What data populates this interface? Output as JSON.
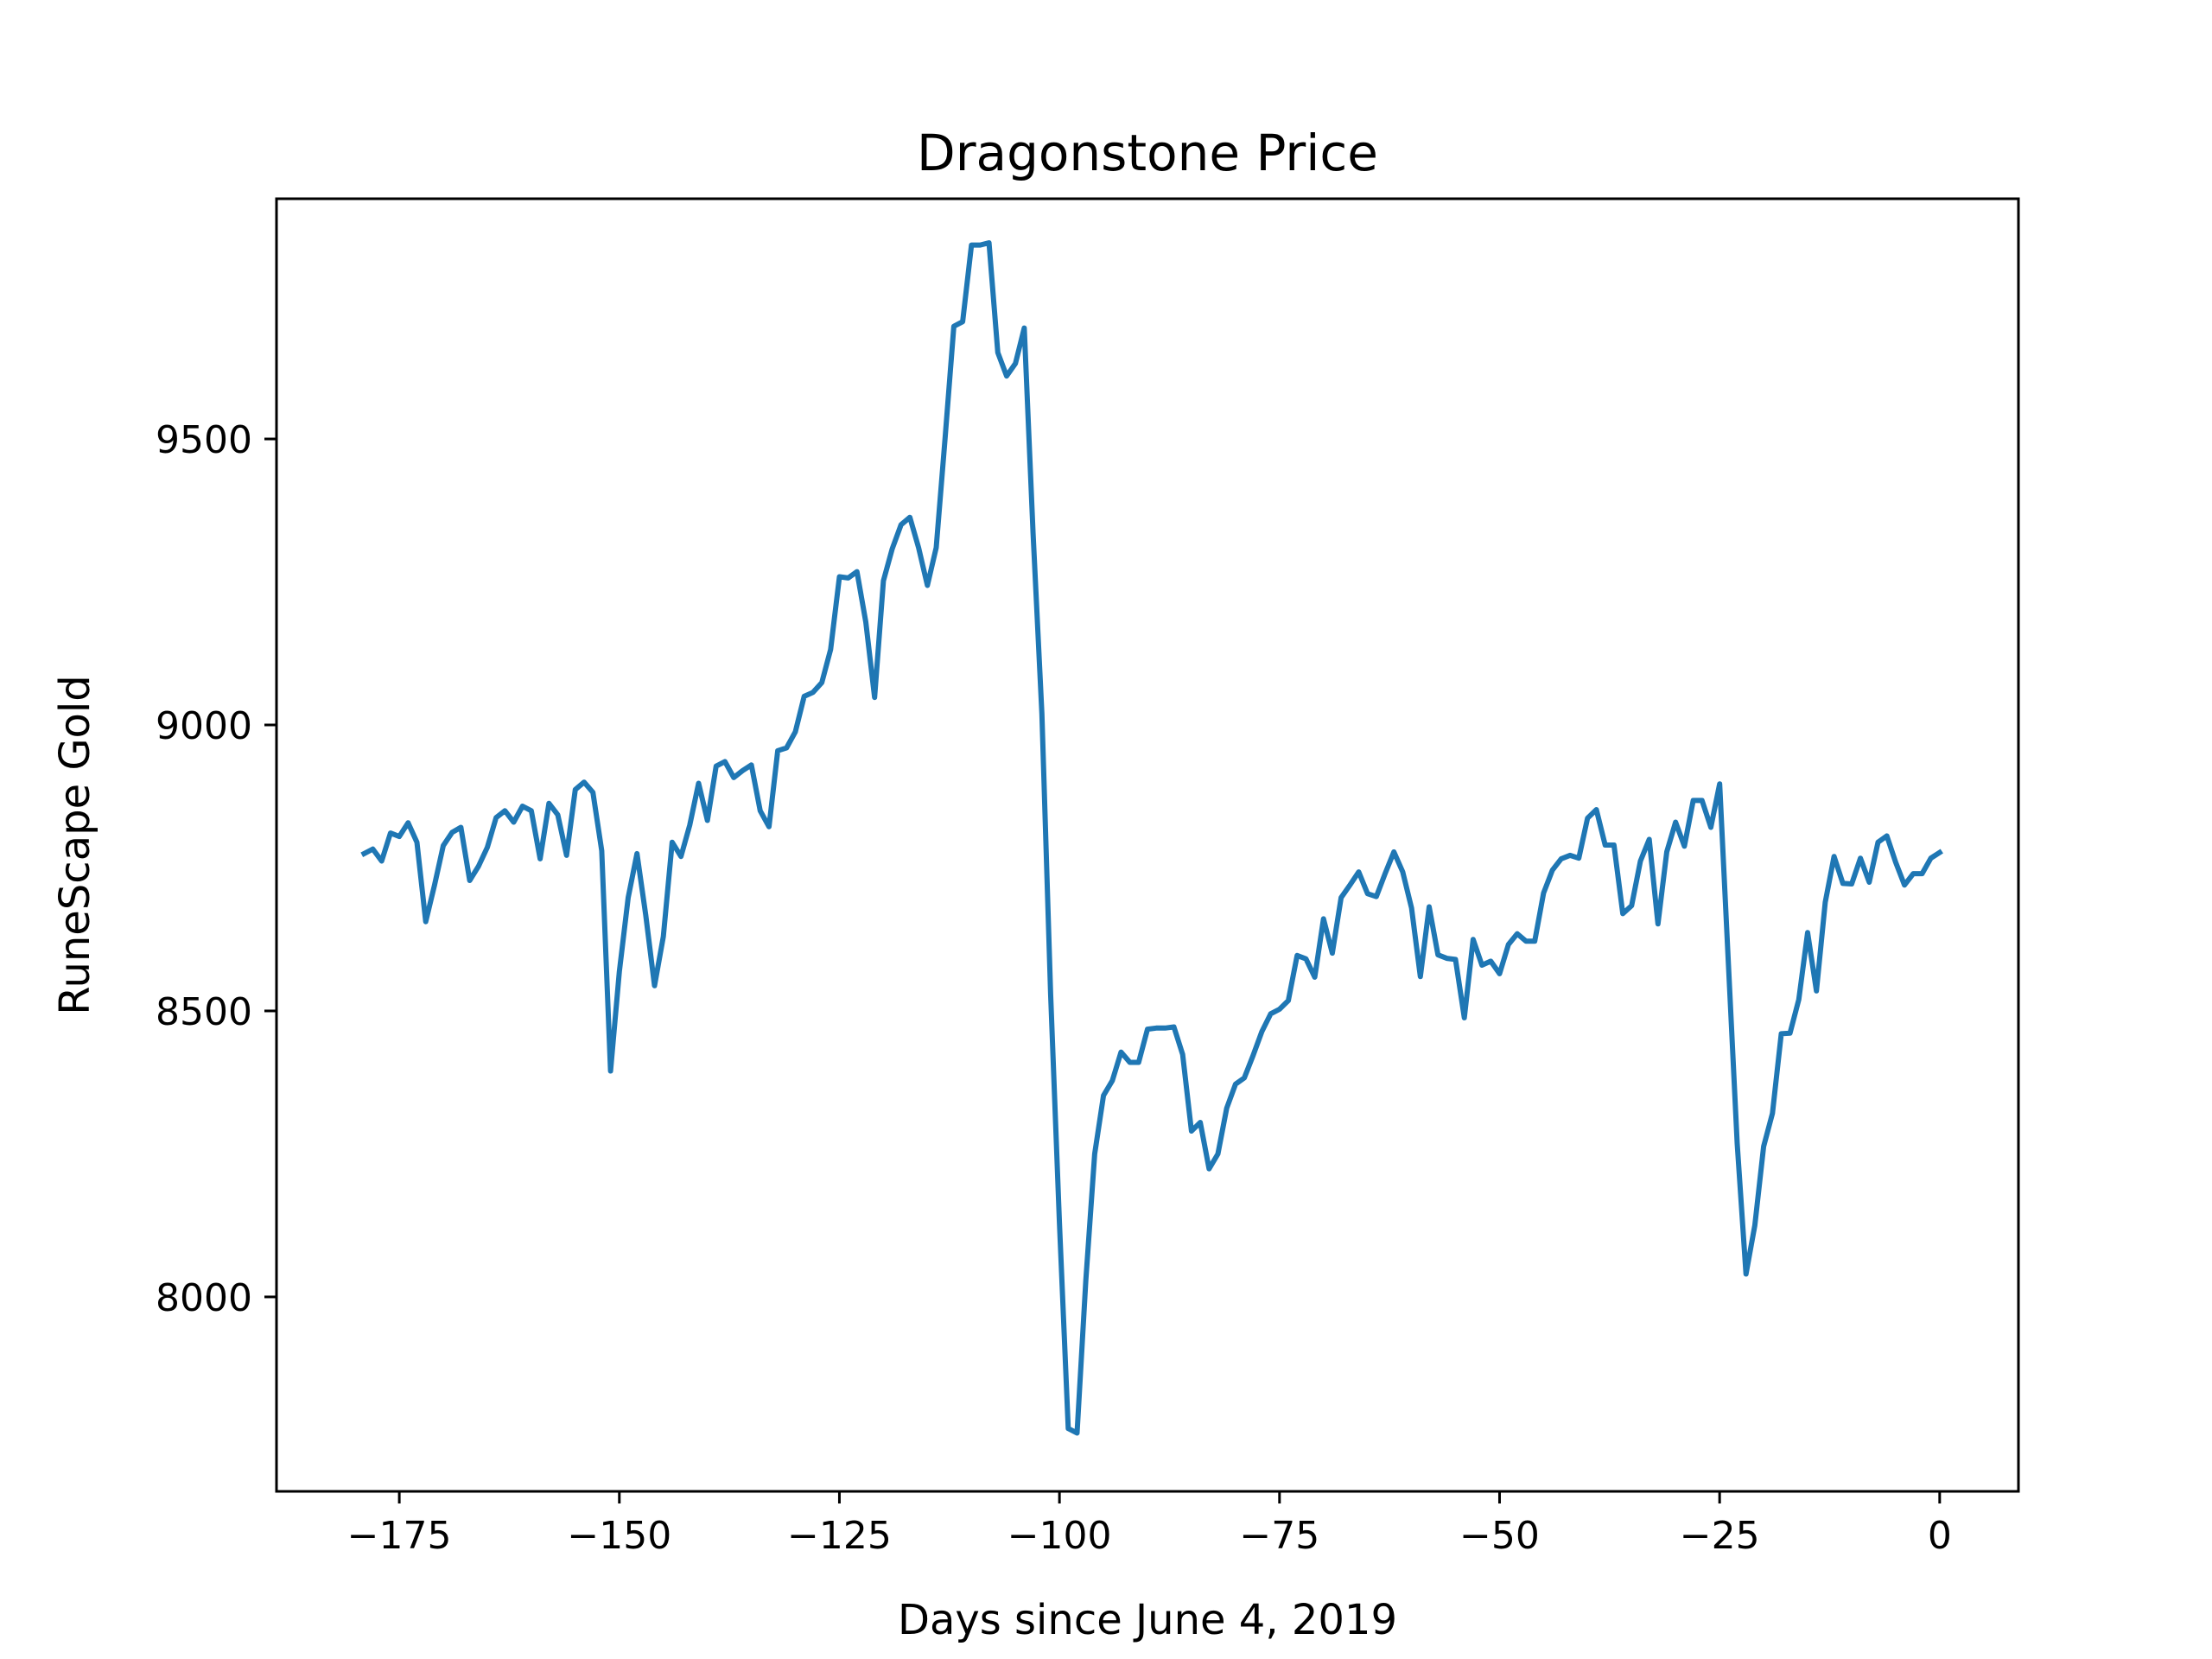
{
  "chart_data": {
    "type": "line",
    "title": "Dragonstone Price",
    "xlabel": "Days since June 4, 2019",
    "ylabel": "RuneScape Gold",
    "xlim": [
      -188.95,
      8.95
    ],
    "ylim": [
      7660,
      9920
    ],
    "xticks": [
      -175,
      -150,
      -125,
      -100,
      -75,
      -50,
      -25,
      0
    ],
    "xtick_labels": [
      "−175",
      "−150",
      "−125",
      "−100",
      "−75",
      "−50",
      "−25",
      "0"
    ],
    "yticks": [
      8000,
      8500,
      9000,
      9500
    ],
    "ytick_labels": [
      "8000",
      "8500",
      "9000",
      "9500"
    ],
    "grid": false,
    "line_color": "#1f77b4",
    "series": [
      {
        "x": [
          -179,
          -178,
          -177,
          -176,
          -175,
          -174,
          -173,
          -172,
          -171,
          -170,
          -169,
          -168,
          -167,
          -166,
          -165,
          -164,
          -163,
          -162,
          -161,
          -160,
          -159,
          -158,
          -157,
          -156,
          -155,
          -154,
          -153,
          -152,
          -151,
          -150,
          -149,
          -148,
          -147,
          -146,
          -145,
          -144,
          -143,
          -142,
          -141,
          -140,
          -139,
          -138,
          -137,
          -136,
          -135,
          -134,
          -133,
          -132,
          -131,
          -130,
          -129,
          -128,
          -127,
          -126,
          -125,
          -124,
          -123,
          -122,
          -121,
          -120,
          -119,
          -118,
          -117,
          -116,
          -115,
          -114,
          -113,
          -112,
          -111,
          -110,
          -109,
          -108,
          -107,
          -106,
          -105,
          -104,
          -103,
          -102,
          -101,
          -100,
          -99,
          -98,
          -97,
          -96,
          -95,
          -94,
          -93,
          -92,
          -91,
          -90,
          -89,
          -88,
          -87,
          -86,
          -85,
          -84,
          -83,
          -82,
          -81,
          -80,
          -79,
          -78,
          -77,
          -76,
          -75,
          -74,
          -73,
          -72,
          -71,
          -70,
          -69,
          -68,
          -67,
          -66,
          -65,
          -64,
          -63,
          -62,
          -61,
          -60,
          -59,
          -58,
          -57,
          -56,
          -55,
          -54,
          -53,
          -52,
          -51,
          -50,
          -49,
          -48,
          -47,
          -46,
          -45,
          -44,
          -43,
          -42,
          -41,
          -40,
          -39,
          -38,
          -37,
          -36,
          -35,
          -34,
          -33,
          -32,
          -31,
          -30,
          -29,
          -28,
          -27,
          -26,
          -25,
          -24,
          -23,
          -22,
          -21,
          -20,
          -19,
          -18,
          -17,
          -16,
          -15,
          -14,
          -13,
          -12,
          -11,
          -10,
          -9,
          -8,
          -7,
          -6,
          -5,
          -4,
          -3,
          -2,
          -1,
          0
        ],
        "values": [
          8775,
          8783,
          8762,
          8811,
          8805,
          8829,
          8795,
          8656,
          8720,
          8789,
          8812,
          8821,
          8728,
          8753,
          8786,
          8838,
          8850,
          8830,
          8858,
          8850,
          8766,
          8863,
          8843,
          8772,
          8887,
          8900,
          8882,
          8780,
          8395,
          8569,
          8698,
          8775,
          8668,
          8544,
          8630,
          8795,
          8770,
          8825,
          8898,
          8833,
          8928,
          8936,
          8908,
          8920,
          8930,
          8850,
          8822,
          8955,
          8960,
          8988,
          9050,
          9057,
          9074,
          9132,
          9259,
          9257,
          9268,
          9180,
          9048,
          9252,
          9308,
          9350,
          9363,
          9310,
          9244,
          9310,
          9500,
          9697,
          9705,
          9839,
          9839,
          9843,
          9651,
          9610,
          9632,
          9694,
          9335,
          9020,
          8530,
          8130,
          7770,
          7762,
          8030,
          8250,
          8352,
          8378,
          8428,
          8410,
          8410,
          8468,
          8470,
          8470,
          8472,
          8424,
          8290,
          8305,
          8224,
          8250,
          8330,
          8372,
          8383,
          8422,
          8464,
          8495,
          8503,
          8518,
          8597,
          8591,
          8559,
          8661,
          8601,
          8698,
          8720,
          8743,
          8705,
          8700,
          8740,
          8778,
          8743,
          8680,
          8560,
          8682,
          8598,
          8592,
          8590,
          8488,
          8625,
          8580,
          8587,
          8565,
          8616,
          8635,
          8622,
          8622,
          8706,
          8746,
          8766,
          8772,
          8767,
          8837,
          8852,
          8790,
          8790,
          8670,
          8684,
          8762,
          8800,
          8652,
          8778,
          8830,
          8788,
          8868,
          8868,
          8821,
          8897,
          8583,
          8268,
          8040,
          8125,
          8263,
          8321,
          8460,
          8461,
          8520,
          8637,
          8535,
          8690,
          8770,
          8723,
          8722,
          8767,
          8725,
          8795,
          8806,
          8760,
          8720,
          8740,
          8740,
          8767,
          8777
        ]
      }
    ]
  }
}
